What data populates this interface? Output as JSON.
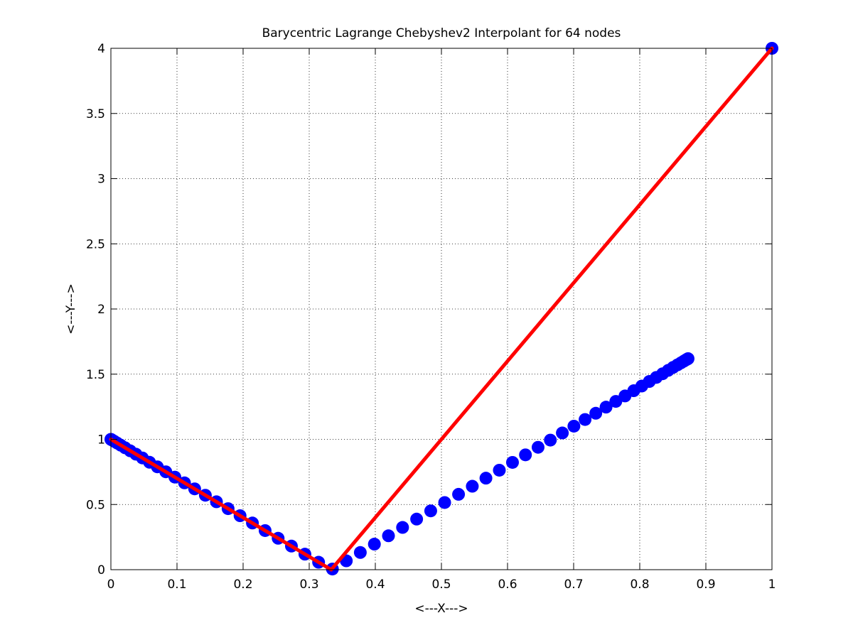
{
  "chart_data": {
    "type": "line",
    "title": "Barycentric Lagrange Chebyshev2 Interpolant for 64 nodes",
    "xlabel": "<---X--->",
    "ylabel": "<---Y--->",
    "xlim": [
      0,
      1
    ],
    "ylim": [
      0,
      4
    ],
    "x_ticks": [
      0,
      0.1,
      0.2,
      0.3,
      0.4,
      0.5,
      0.6,
      0.7,
      0.8,
      0.9,
      1
    ],
    "x_tick_labels": [
      "0",
      "0.1",
      "0.2",
      "0.3",
      "0.4",
      "0.5",
      "0.6",
      "0.7",
      "0.8",
      "0.9",
      "1"
    ],
    "y_ticks": [
      0,
      0.5,
      1,
      1.5,
      2,
      2.5,
      3,
      3.5,
      4
    ],
    "y_tick_labels": [
      "0",
      "0.5",
      "1",
      "1.5",
      "2",
      "2.5",
      "3",
      "3.5",
      "4"
    ],
    "grid": true,
    "grid_style": "dotted",
    "series": [
      {
        "kind": "markers",
        "color": "#0000ff",
        "x": [
          0,
          0.0006,
          0.0024,
          0.0054,
          0.0096,
          0.015,
          0.0215,
          0.0292,
          0.0379,
          0.0477,
          0.0585,
          0.0703,
          0.0831,
          0.0968,
          0.1114,
          0.1267,
          0.1429,
          0.1597,
          0.1773,
          0.1954,
          0.2141,
          0.2333,
          0.253,
          0.2731,
          0.2935,
          0.3142,
          0.3351,
          0.3561,
          0.3773,
          0.3986,
          0.4199,
          0.4412,
          0.4625,
          0.4838,
          0.5049,
          0.5259,
          0.5467,
          0.5673,
          0.5876,
          0.6075,
          0.6271,
          0.6462,
          0.6648,
          0.6829,
          0.7004,
          0.7173,
          0.7335,
          0.749,
          0.7638,
          0.7777,
          0.7909,
          0.8031,
          0.8145,
          0.825,
          0.8345,
          0.843,
          0.8505,
          0.857,
          0.8624,
          0.8667,
          0.87,
          0.8721,
          0.8731,
          1
        ],
        "y": [
          1,
          0.998,
          0.993,
          0.984,
          0.971,
          0.955,
          0.935,
          0.912,
          0.886,
          0.857,
          0.824,
          0.789,
          0.751,
          0.71,
          0.666,
          0.62,
          0.571,
          0.521,
          0.468,
          0.414,
          0.358,
          0.3,
          0.241,
          0.181,
          0.119,
          0.057,
          0.005,
          0.068,
          0.132,
          0.196,
          0.26,
          0.324,
          0.388,
          0.451,
          0.515,
          0.578,
          0.64,
          0.702,
          0.763,
          0.823,
          0.881,
          0.939,
          0.994,
          1.049,
          1.101,
          1.152,
          1.2,
          1.247,
          1.291,
          1.333,
          1.373,
          1.409,
          1.444,
          1.475,
          1.503,
          1.529,
          1.552,
          1.571,
          1.587,
          1.6,
          1.61,
          1.616,
          1.619,
          4
        ]
      },
      {
        "kind": "line",
        "color": "#ff0000",
        "x": [
          0,
          0.3333,
          1
        ],
        "y": [
          1,
          0,
          4
        ]
      }
    ]
  }
}
